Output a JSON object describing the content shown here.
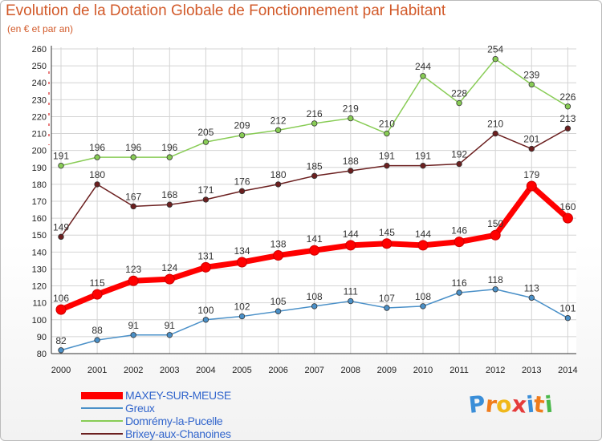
{
  "title": "Evolution de la Dotation Globale de Fonctionnement par Habitant",
  "subtitle": "(en € et par an)",
  "logo": "Proxiti",
  "chart_data": {
    "type": "line",
    "x": [
      "2000",
      "2001",
      "2002",
      "2003",
      "2004",
      "2005",
      "2006",
      "2007",
      "2008",
      "2009",
      "2010",
      "2011",
      "2012",
      "2013",
      "2014"
    ],
    "ylim": [
      80,
      260
    ],
    "yticks": [
      80,
      90,
      100,
      110,
      120,
      130,
      140,
      150,
      160,
      170,
      180,
      190,
      200,
      210,
      220,
      230,
      240,
      250,
      260
    ],
    "grid": true,
    "legend_position": "bottom-left",
    "series": [
      {
        "name": "MAXEY-SUR-MEUSE",
        "color": "#ff0000",
        "values": [
          106,
          115,
          123,
          124,
          131,
          134,
          138,
          141,
          144,
          145,
          144,
          146,
          150,
          179,
          160
        ]
      },
      {
        "name": "Greux",
        "color": "#4a90c8",
        "values": [
          82,
          88,
          91,
          91,
          100,
          102,
          105,
          108,
          111,
          107,
          108,
          116,
          118,
          113,
          101
        ]
      },
      {
        "name": "Domrémy-la-Pucelle",
        "color": "#88cc55",
        "values": [
          191,
          196,
          196,
          196,
          205,
          209,
          212,
          216,
          219,
          210,
          244,
          228,
          254,
          239,
          226
        ]
      },
      {
        "name": "Brixey-aux-Chanoines",
        "color": "#6b1f1f",
        "values": [
          149,
          180,
          167,
          168,
          171,
          176,
          180,
          185,
          188,
          191,
          191,
          192,
          210,
          201,
          213
        ]
      }
    ]
  },
  "legend": [
    {
      "label": "MAXEY-SUR-MEUSE",
      "color": "#ff0000",
      "text_color": "#3366cc"
    },
    {
      "label": "Greux",
      "color": "#4a90c8",
      "text_color": "#3366cc"
    },
    {
      "label": "Domrémy-la-Pucelle",
      "color": "#88cc55",
      "text_color": "#3366cc"
    },
    {
      "label": "Brixey-aux-Chanoines",
      "color": "#6b1f1f",
      "text_color": "#3366cc"
    }
  ]
}
